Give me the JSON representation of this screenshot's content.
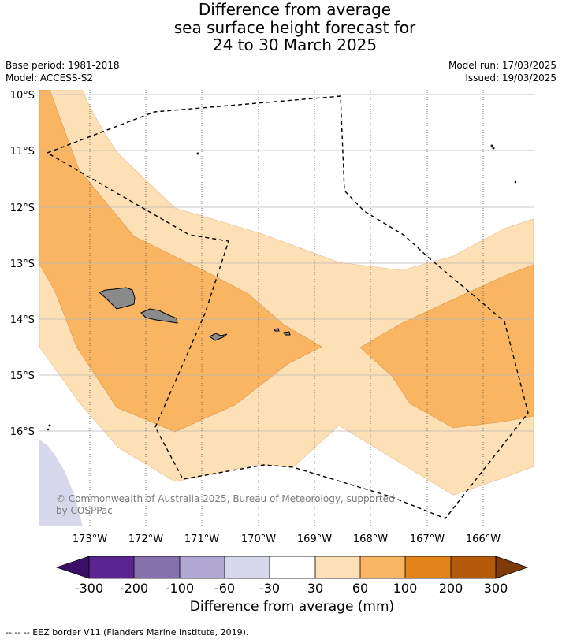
{
  "title": {
    "line1": "Difference from average",
    "line2": "sea surface height forecast for",
    "line3": "24 to 30 March 2025"
  },
  "meta_left": {
    "base_period": "Base period: 1981-2018",
    "model": "Model: ACCESS-S2"
  },
  "meta_right": {
    "model_run": "Model run: 17/03/2025",
    "issued": "Issued: 19/03/2025"
  },
  "map": {
    "lat_labels": [
      "10°S",
      "11°S",
      "12°S",
      "13°S",
      "14°S",
      "15°S",
      "16°S"
    ],
    "lon_labels": [
      "173°W",
      "172°W",
      "171°W",
      "170°W",
      "169°W",
      "168°W",
      "167°W",
      "166°W"
    ],
    "copyright": "© Commonwealth of Australia 2025, Bureau of Meteorology, supported by COSPPac"
  },
  "colorbar": {
    "title": "Difference from average (mm)",
    "tick_labels": [
      "-300",
      "-200",
      "-100",
      "-60",
      "-30",
      "30",
      "60",
      "100",
      "200",
      "300"
    ],
    "colors": [
      "#3b0f66",
      "#5a2590",
      "#8471ae",
      "#b0a7d2",
      "#d8d8ec",
      "#ffffff",
      "#fde0b5",
      "#f9b561",
      "#e2831a",
      "#b55a0a",
      "#7f3b07"
    ]
  },
  "footnote": "--  --  -- EEZ border V11 (Flanders Marine Institute, 2019)."
}
